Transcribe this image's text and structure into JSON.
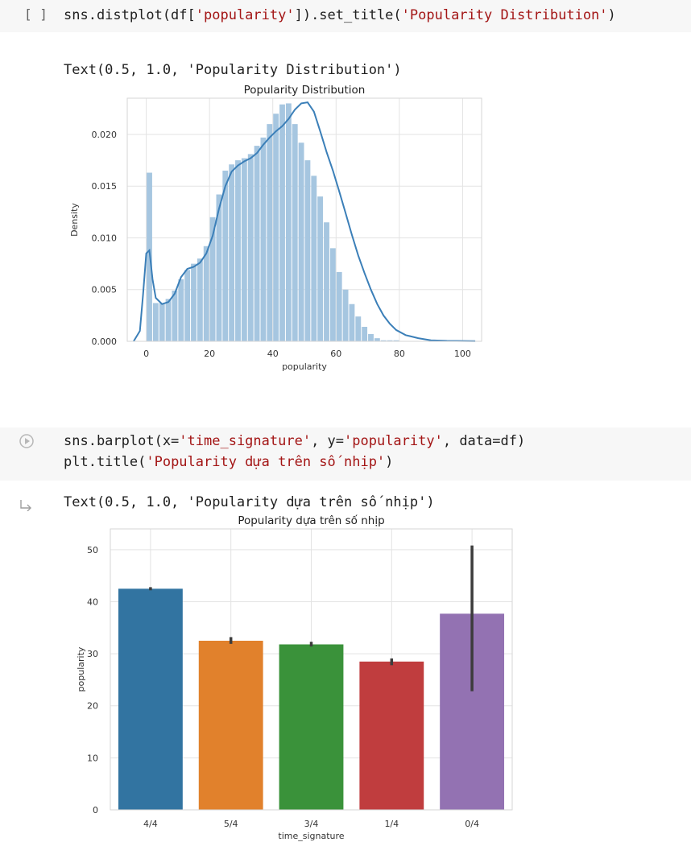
{
  "cell1": {
    "bracket": "[ ]",
    "code_prefix": "sns.distplot(df[",
    "code_str1": "'popularity'",
    "code_mid": "]).set_title(",
    "code_str2": "'Popularity Distribution'",
    "code_suffix": ")",
    "output_text": "Text(0.5, 1.0, 'Popularity Distribution')"
  },
  "cell2": {
    "line1_prefix": "sns.barplot(x=",
    "line1_str1": "'time_signature'",
    "line1_mid1": ", y=",
    "line1_str2": "'popularity'",
    "line1_suffix": ", data=df)",
    "line2_prefix": "plt.title(",
    "line2_str": "'Popularity dựa trên số nhịp'",
    "line2_suffix": ")",
    "output_text": "Text(0.5, 1.0, 'Popularity dựa trên số nhịp')"
  },
  "chart_data": [
    {
      "type": "histogram",
      "title": "Popularity Distribution",
      "xlabel": "popularity",
      "ylabel": "Density",
      "xlim": [
        -6,
        106
      ],
      "ylim": [
        0,
        0.0235
      ],
      "xticks": [
        0,
        20,
        40,
        60,
        80,
        100
      ],
      "yticks": [
        0.0,
        0.005,
        0.01,
        0.015,
        0.02
      ],
      "ytick_labels": [
        "0.000",
        "0.005",
        "0.010",
        "0.015",
        "0.020"
      ],
      "bin_width": 2,
      "bin_start": 0,
      "values": [
        0.0163,
        0.0037,
        0.0037,
        0.0041,
        0.0049,
        0.006,
        0.0069,
        0.0075,
        0.008,
        0.0092,
        0.012,
        0.0142,
        0.0165,
        0.0171,
        0.0175,
        0.0177,
        0.0181,
        0.0189,
        0.0197,
        0.021,
        0.022,
        0.0229,
        0.023,
        0.021,
        0.0192,
        0.0175,
        0.016,
        0.014,
        0.0115,
        0.009,
        0.0067,
        0.005,
        0.0036,
        0.0024,
        0.0014,
        0.0007,
        0.0003,
        0.0001,
        0.0001,
        0.0001
      ],
      "kde": [
        [
          -4,
          0
        ],
        [
          -2,
          0.001
        ],
        [
          -1,
          0.0045
        ],
        [
          0,
          0.0085
        ],
        [
          1,
          0.0088
        ],
        [
          2,
          0.006
        ],
        [
          3,
          0.0042
        ],
        [
          5,
          0.0036
        ],
        [
          7,
          0.0038
        ],
        [
          9,
          0.0046
        ],
        [
          11,
          0.0062
        ],
        [
          13,
          0.007
        ],
        [
          15,
          0.0072
        ],
        [
          17,
          0.0076
        ],
        [
          19,
          0.0085
        ],
        [
          21,
          0.0102
        ],
        [
          23,
          0.0128
        ],
        [
          25,
          0.015
        ],
        [
          27,
          0.0164
        ],
        [
          29,
          0.017
        ],
        [
          31,
          0.0174
        ],
        [
          33,
          0.0177
        ],
        [
          35,
          0.0182
        ],
        [
          37,
          0.019
        ],
        [
          39,
          0.0197
        ],
        [
          41,
          0.0203
        ],
        [
          43,
          0.0208
        ],
        [
          45,
          0.0215
        ],
        [
          47,
          0.0224
        ],
        [
          49,
          0.023
        ],
        [
          51,
          0.0231
        ],
        [
          53,
          0.0222
        ],
        [
          55,
          0.0203
        ],
        [
          57,
          0.0183
        ],
        [
          59,
          0.0165
        ],
        [
          61,
          0.0145
        ],
        [
          63,
          0.0124
        ],
        [
          65,
          0.0103
        ],
        [
          67,
          0.0083
        ],
        [
          69,
          0.0066
        ],
        [
          71,
          0.005
        ],
        [
          73,
          0.0036
        ],
        [
          75,
          0.0025
        ],
        [
          77,
          0.0017
        ],
        [
          79,
          0.0011
        ],
        [
          82,
          0.0006
        ],
        [
          86,
          0.0003
        ],
        [
          90,
          0.0001
        ],
        [
          95,
          5e-05
        ],
        [
          104,
          2e-05
        ]
      ],
      "color": "#3b7fb8",
      "bar_color": "#a6c6e0"
    },
    {
      "type": "bar",
      "title": "Popularity dựa trên số nhịp",
      "xlabel": "time_signature",
      "ylabel": "popularity",
      "categories": [
        "4/4",
        "5/4",
        "3/4",
        "1/4",
        "0/4"
      ],
      "values": [
        42.5,
        32.5,
        31.8,
        28.5,
        37.7
      ],
      "error_low": [
        42.2,
        31.9,
        31.4,
        27.8,
        22.8
      ],
      "error_high": [
        42.8,
        33.2,
        32.3,
        29.1,
        50.8
      ],
      "colors": [
        "#3274a1",
        "#e1812c",
        "#3a923a",
        "#c03d3e",
        "#9372b2"
      ],
      "ylim": [
        0,
        54
      ],
      "yticks": [
        0,
        10,
        20,
        30,
        40,
        50
      ]
    }
  ]
}
